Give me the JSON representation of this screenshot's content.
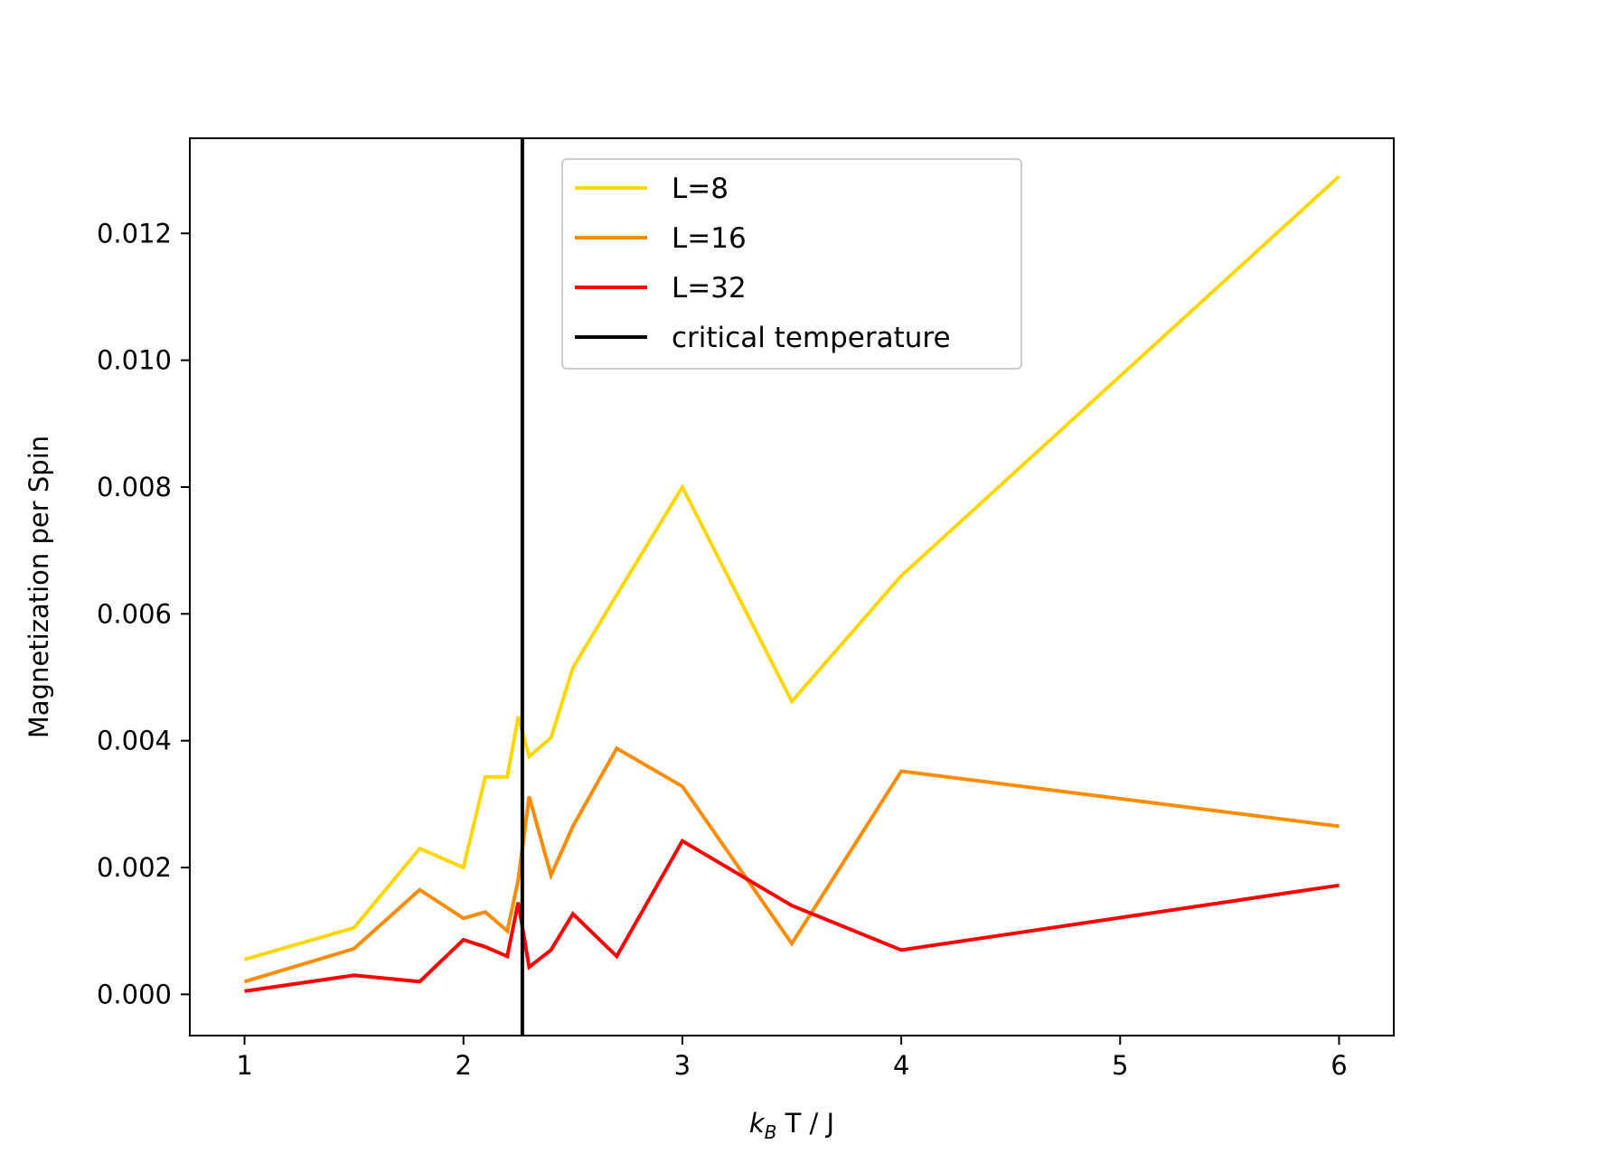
{
  "chart_data": {
    "type": "line",
    "title": "",
    "xlabel_k": "k",
    "xlabel_sub": "B",
    "xlabel_rest": " T / J",
    "ylabel": "Magnetization per Spin",
    "xlim": [
      0.75,
      6.25
    ],
    "ylim": [
      -0.00065,
      0.0135
    ],
    "xticks": [
      1,
      2,
      3,
      4,
      5,
      6
    ],
    "xtick_labels": [
      "1",
      "2",
      "3",
      "4",
      "5",
      "6"
    ],
    "yticks": [
      0.0,
      0.002,
      0.004,
      0.006,
      0.008,
      0.01,
      0.012
    ],
    "ytick_labels": [
      "0.000",
      "0.002",
      "0.004",
      "0.006",
      "0.008",
      "0.010",
      "0.012"
    ],
    "grid": false,
    "legend_position": "upper-center",
    "x": [
      1.0,
      1.5,
      1.8,
      2.0,
      2.1,
      2.2,
      2.25,
      2.3,
      2.4,
      2.5,
      2.7,
      3.0,
      3.5,
      4.0,
      6.0
    ],
    "series": [
      {
        "name": "L=8",
        "color": "#ffd700",
        "values": [
          0.00055,
          0.00105,
          0.0023,
          0.002,
          0.00343,
          0.00343,
          0.00438,
          0.00375,
          0.00405,
          0.00515,
          0.0063,
          0.008,
          0.00462,
          0.0066,
          0.0129
        ]
      },
      {
        "name": "L=16",
        "color": "#ff8c00",
        "values": [
          0.0002,
          0.00072,
          0.00165,
          0.0012,
          0.0013,
          0.001,
          0.0018,
          0.00312,
          0.00188,
          0.00265,
          0.00388,
          0.00328,
          0.0008,
          0.00352,
          0.00265
        ]
      },
      {
        "name": "L=32",
        "color": "#ff0000",
        "values": [
          5e-05,
          0.0003,
          0.0002,
          0.00086,
          0.00075,
          0.0006,
          0.00145,
          0.00043,
          0.0007,
          0.00127,
          0.0006,
          0.00242,
          0.0014,
          0.0007,
          0.00172
        ]
      }
    ],
    "vline": {
      "name": "critical temperature",
      "x": 2.269,
      "color": "#000000"
    }
  }
}
